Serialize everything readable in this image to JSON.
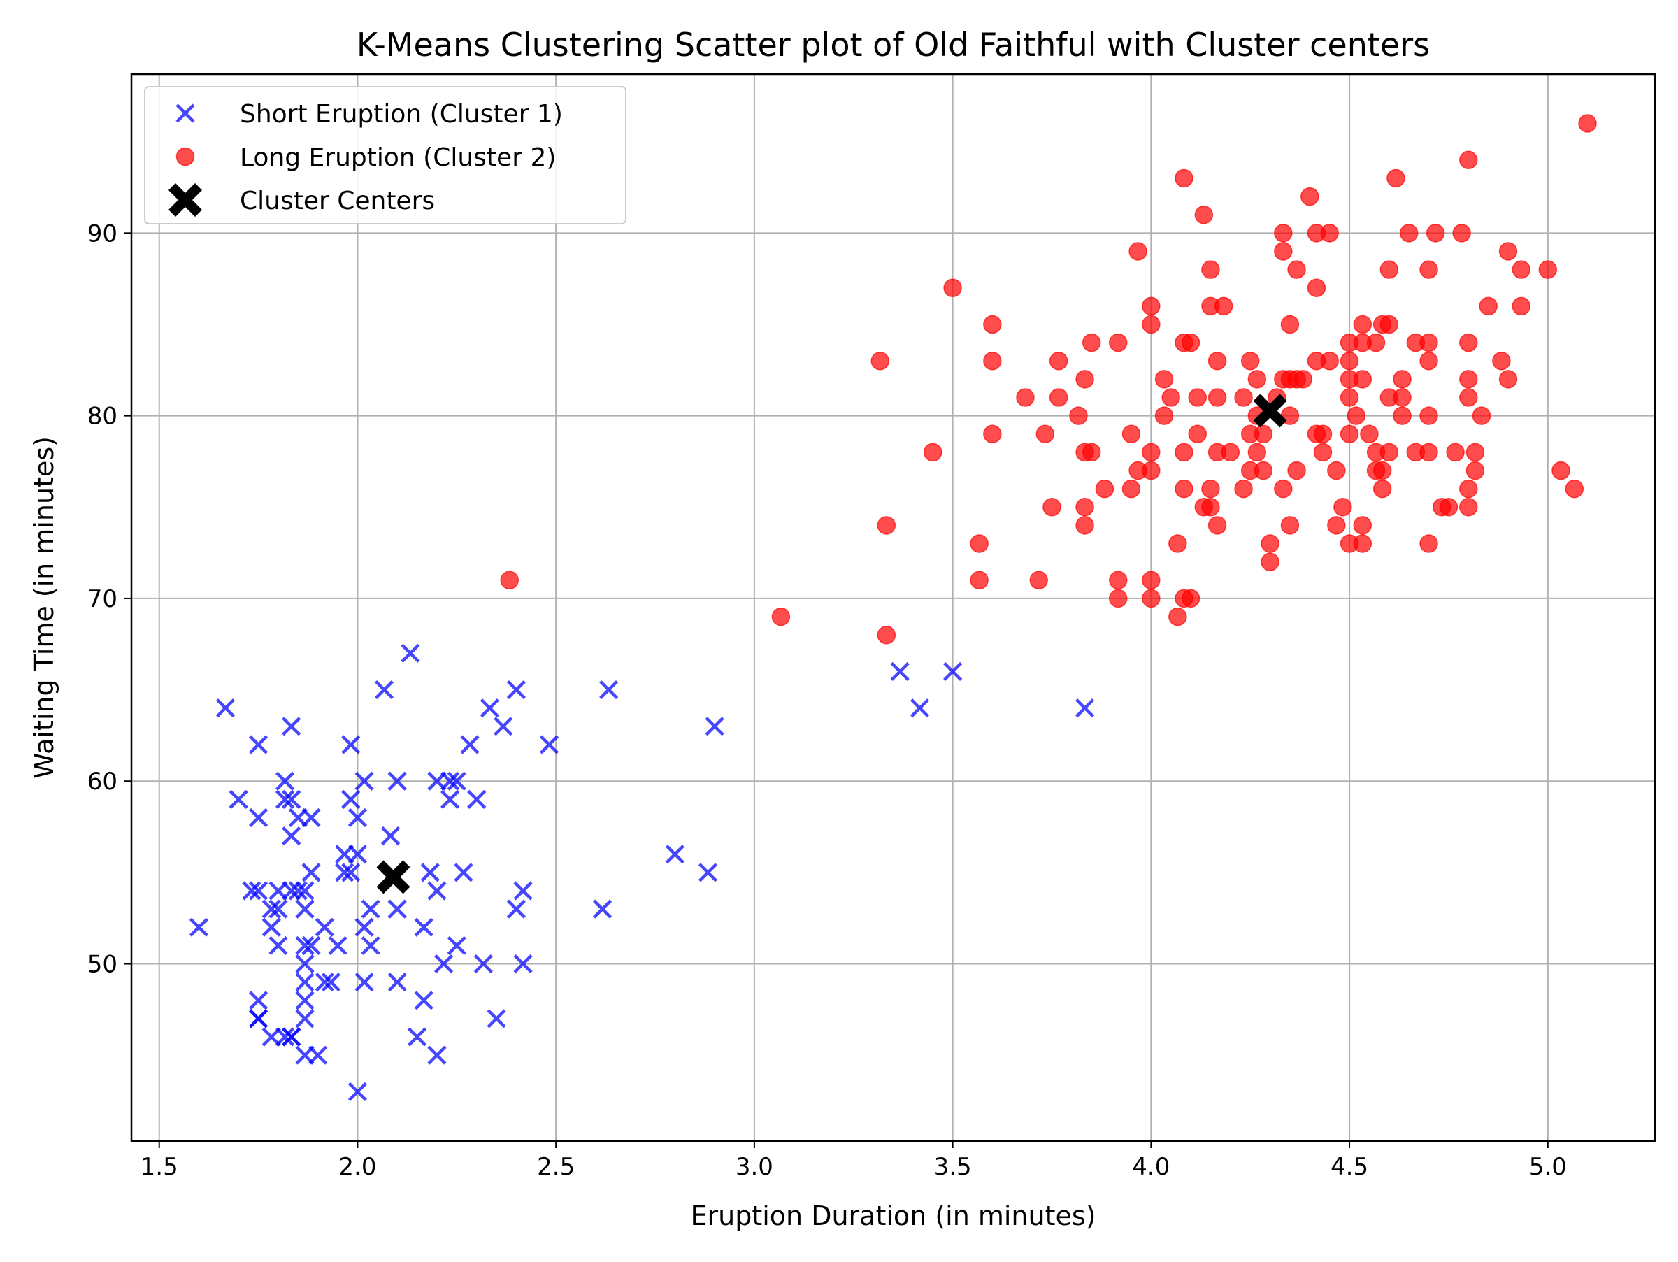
{
  "chart_data": {
    "type": "scatter",
    "title": "K-Means Clustering Scatter plot of Old Faithful with Cluster centers",
    "xlabel": "Eruption Duration (in minutes)",
    "ylabel": "Waiting Time (in minutes)",
    "xlim": [
      1.43,
      5.27
    ],
    "ylim": [
      40.3,
      98.7
    ],
    "xticks": [
      1.5,
      2.0,
      2.5,
      3.0,
      3.5,
      4.0,
      4.5,
      5.0
    ],
    "xtick_labels": [
      "1.5",
      "2.0",
      "2.5",
      "3.0",
      "3.5",
      "4.0",
      "4.5",
      "5.0"
    ],
    "yticks": [
      50,
      60,
      70,
      80,
      90
    ],
    "ytick_labels": [
      "50",
      "60",
      "70",
      "80",
      "90"
    ],
    "grid": true,
    "legend_position": "top-left",
    "series": [
      {
        "name": "Short Eruption (Cluster 1)",
        "marker": "x",
        "color": "#0000ff",
        "points": [
          [
            1.6,
            52
          ],
          [
            1.667,
            64
          ],
          [
            1.7,
            59
          ],
          [
            1.733,
            54
          ],
          [
            1.75,
            54
          ],
          [
            1.75,
            58
          ],
          [
            1.75,
            62
          ],
          [
            1.75,
            47
          ],
          [
            1.75,
            48
          ],
          [
            1.75,
            47
          ],
          [
            1.783,
            46
          ],
          [
            1.783,
            52
          ],
          [
            1.783,
            53
          ],
          [
            1.8,
            51
          ],
          [
            1.8,
            53
          ],
          [
            1.8,
            54
          ],
          [
            1.817,
            46
          ],
          [
            1.817,
            60
          ],
          [
            1.817,
            59
          ],
          [
            1.833,
            46
          ],
          [
            1.833,
            54
          ],
          [
            1.833,
            57
          ],
          [
            1.833,
            59
          ],
          [
            1.833,
            63
          ],
          [
            1.833,
            46
          ],
          [
            1.85,
            58
          ],
          [
            1.85,
            54
          ],
          [
            1.867,
            45
          ],
          [
            1.867,
            47
          ],
          [
            1.867,
            48
          ],
          [
            1.867,
            49
          ],
          [
            1.867,
            50
          ],
          [
            1.867,
            51
          ],
          [
            1.867,
            53
          ],
          [
            1.867,
            54
          ],
          [
            1.883,
            55
          ],
          [
            1.883,
            58
          ],
          [
            1.883,
            51
          ],
          [
            1.9,
            45
          ],
          [
            1.917,
            49
          ],
          [
            1.917,
            52
          ],
          [
            1.933,
            49
          ],
          [
            1.95,
            51
          ],
          [
            1.967,
            55
          ],
          [
            1.967,
            56
          ],
          [
            1.983,
            62
          ],
          [
            1.983,
            59
          ],
          [
            1.983,
            55
          ],
          [
            2.0,
            43
          ],
          [
            2.0,
            56
          ],
          [
            2.0,
            58
          ],
          [
            2.017,
            49
          ],
          [
            2.017,
            52
          ],
          [
            2.017,
            60
          ],
          [
            2.033,
            53
          ],
          [
            2.033,
            51
          ],
          [
            2.067,
            65
          ],
          [
            2.083,
            57
          ],
          [
            2.1,
            49
          ],
          [
            2.1,
            53
          ],
          [
            2.1,
            60
          ],
          [
            2.133,
            67
          ],
          [
            2.15,
            46
          ],
          [
            2.167,
            48
          ],
          [
            2.167,
            52
          ],
          [
            2.183,
            55
          ],
          [
            2.2,
            45
          ],
          [
            2.2,
            54
          ],
          [
            2.2,
            60
          ],
          [
            2.217,
            50
          ],
          [
            2.233,
            59
          ],
          [
            2.233,
            60
          ],
          [
            2.25,
            51
          ],
          [
            2.25,
            60
          ],
          [
            2.267,
            55
          ],
          [
            2.283,
            62
          ],
          [
            2.3,
            59
          ],
          [
            2.317,
            50
          ],
          [
            2.333,
            64
          ],
          [
            2.35,
            47
          ],
          [
            2.367,
            63
          ],
          [
            2.4,
            53
          ],
          [
            2.4,
            65
          ],
          [
            2.417,
            54
          ],
          [
            2.417,
            50
          ],
          [
            2.483,
            62
          ],
          [
            2.617,
            53
          ],
          [
            2.633,
            65
          ],
          [
            2.8,
            56
          ],
          [
            2.883,
            55
          ],
          [
            2.9,
            63
          ],
          [
            3.367,
            66
          ],
          [
            3.417,
            64
          ],
          [
            3.5,
            66
          ],
          [
            3.833,
            64
          ]
        ]
      },
      {
        "name": "Long Eruption (Cluster 2)",
        "marker": "o",
        "color": "#ff0000",
        "points": [
          [
            2.383,
            71
          ],
          [
            3.067,
            69
          ],
          [
            3.317,
            83
          ],
          [
            3.333,
            74
          ],
          [
            3.333,
            68
          ],
          [
            3.45,
            78
          ],
          [
            3.5,
            87
          ],
          [
            3.567,
            73
          ],
          [
            3.567,
            71
          ],
          [
            3.6,
            85
          ],
          [
            3.6,
            83
          ],
          [
            3.6,
            79
          ],
          [
            3.683,
            81
          ],
          [
            3.717,
            71
          ],
          [
            3.733,
            79
          ],
          [
            3.75,
            75
          ],
          [
            3.767,
            83
          ],
          [
            3.767,
            81
          ],
          [
            3.817,
            80
          ],
          [
            3.833,
            82
          ],
          [
            3.833,
            78
          ],
          [
            3.833,
            75
          ],
          [
            3.833,
            74
          ],
          [
            3.85,
            84
          ],
          [
            3.85,
            78
          ],
          [
            3.883,
            76
          ],
          [
            3.917,
            84
          ],
          [
            3.917,
            71
          ],
          [
            3.917,
            70
          ],
          [
            3.95,
            79
          ],
          [
            3.95,
            76
          ],
          [
            3.967,
            89
          ],
          [
            3.967,
            77
          ],
          [
            4.0,
            86
          ],
          [
            4.0,
            85
          ],
          [
            4.0,
            78
          ],
          [
            4.0,
            77
          ],
          [
            4.0,
            71
          ],
          [
            4.0,
            70
          ],
          [
            4.033,
            82
          ],
          [
            4.033,
            80
          ],
          [
            4.05,
            81
          ],
          [
            4.067,
            73
          ],
          [
            4.067,
            69
          ],
          [
            4.083,
            93
          ],
          [
            4.083,
            84
          ],
          [
            4.083,
            78
          ],
          [
            4.083,
            76
          ],
          [
            4.083,
            70
          ],
          [
            4.1,
            84
          ],
          [
            4.1,
            70
          ],
          [
            4.117,
            81
          ],
          [
            4.117,
            79
          ],
          [
            4.133,
            91
          ],
          [
            4.133,
            75
          ],
          [
            4.15,
            88
          ],
          [
            4.15,
            86
          ],
          [
            4.15,
            76
          ],
          [
            4.15,
            75
          ],
          [
            4.167,
            83
          ],
          [
            4.167,
            81
          ],
          [
            4.167,
            78
          ],
          [
            4.167,
            74
          ],
          [
            4.183,
            86
          ],
          [
            4.2,
            78
          ],
          [
            4.233,
            81
          ],
          [
            4.233,
            76
          ],
          [
            4.25,
            83
          ],
          [
            4.25,
            79
          ],
          [
            4.25,
            77
          ],
          [
            4.267,
            82
          ],
          [
            4.267,
            80
          ],
          [
            4.267,
            78
          ],
          [
            4.283,
            79
          ],
          [
            4.283,
            77
          ],
          [
            4.3,
            73
          ],
          [
            4.3,
            72
          ],
          [
            4.317,
            81
          ],
          [
            4.333,
            90
          ],
          [
            4.333,
            89
          ],
          [
            4.333,
            82
          ],
          [
            4.333,
            76
          ],
          [
            4.35,
            85
          ],
          [
            4.35,
            82
          ],
          [
            4.35,
            80
          ],
          [
            4.35,
            74
          ],
          [
            4.367,
            88
          ],
          [
            4.367,
            82
          ],
          [
            4.367,
            77
          ],
          [
            4.383,
            82
          ],
          [
            4.4,
            92
          ],
          [
            4.417,
            90
          ],
          [
            4.417,
            87
          ],
          [
            4.417,
            83
          ],
          [
            4.417,
            79
          ],
          [
            4.433,
            79
          ],
          [
            4.433,
            78
          ],
          [
            4.45,
            90
          ],
          [
            4.45,
            83
          ],
          [
            4.467,
            77
          ],
          [
            4.467,
            74
          ],
          [
            4.483,
            75
          ],
          [
            4.5,
            84
          ],
          [
            4.5,
            83
          ],
          [
            4.5,
            82
          ],
          [
            4.5,
            81
          ],
          [
            4.5,
            79
          ],
          [
            4.5,
            73
          ],
          [
            4.517,
            80
          ],
          [
            4.533,
            85
          ],
          [
            4.533,
            84
          ],
          [
            4.533,
            82
          ],
          [
            4.533,
            74
          ],
          [
            4.533,
            73
          ],
          [
            4.55,
            79
          ],
          [
            4.567,
            84
          ],
          [
            4.567,
            78
          ],
          [
            4.567,
            77
          ],
          [
            4.583,
            85
          ],
          [
            4.583,
            77
          ],
          [
            4.583,
            76
          ],
          [
            4.6,
            88
          ],
          [
            4.6,
            85
          ],
          [
            4.6,
            81
          ],
          [
            4.6,
            78
          ],
          [
            4.617,
            93
          ],
          [
            4.633,
            82
          ],
          [
            4.633,
            81
          ],
          [
            4.633,
            80
          ],
          [
            4.65,
            90
          ],
          [
            4.667,
            84
          ],
          [
            4.667,
            78
          ],
          [
            4.7,
            88
          ],
          [
            4.7,
            84
          ],
          [
            4.7,
            83
          ],
          [
            4.7,
            80
          ],
          [
            4.7,
            78
          ],
          [
            4.7,
            73
          ],
          [
            4.717,
            90
          ],
          [
            4.733,
            75
          ],
          [
            4.75,
            75
          ],
          [
            4.767,
            78
          ],
          [
            4.783,
            90
          ],
          [
            4.8,
            94
          ],
          [
            4.8,
            84
          ],
          [
            4.8,
            82
          ],
          [
            4.8,
            81
          ],
          [
            4.8,
            76
          ],
          [
            4.8,
            75
          ],
          [
            4.817,
            78
          ],
          [
            4.817,
            77
          ],
          [
            4.833,
            80
          ],
          [
            4.85,
            86
          ],
          [
            4.883,
            83
          ],
          [
            4.9,
            89
          ],
          [
            4.9,
            82
          ],
          [
            4.933,
            88
          ],
          [
            4.933,
            86
          ],
          [
            5.0,
            88
          ],
          [
            5.033,
            77
          ],
          [
            5.067,
            76
          ],
          [
            5.1,
            96
          ]
        ]
      },
      {
        "name": "Cluster Centers",
        "marker": "X",
        "color": "#000000",
        "points": [
          [
            2.09,
            54.75
          ],
          [
            4.3,
            80.28
          ]
        ]
      }
    ]
  }
}
